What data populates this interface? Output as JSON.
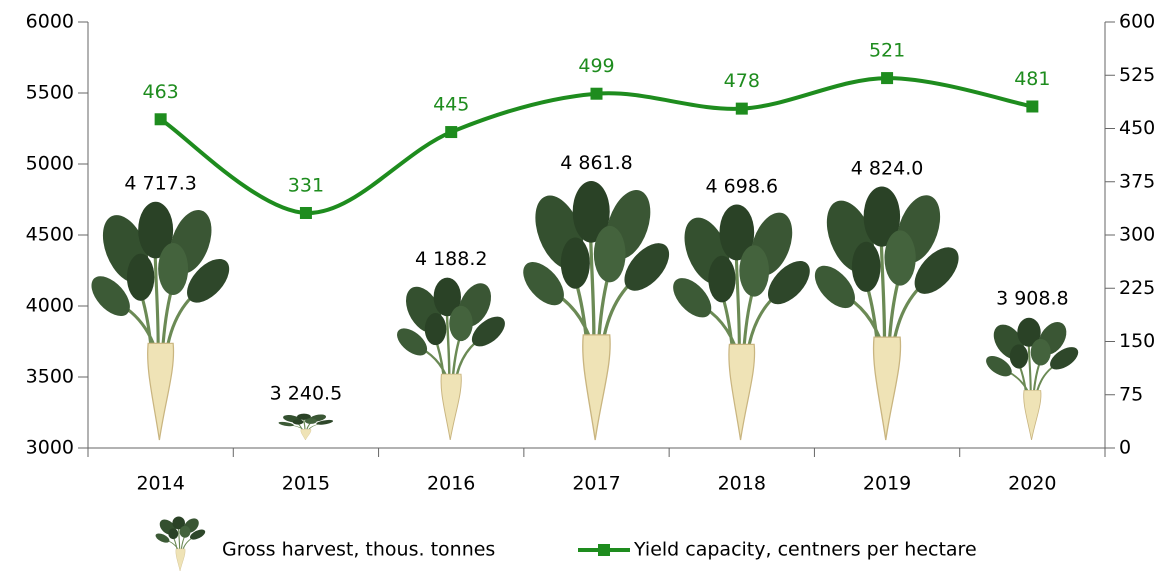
{
  "chart_data": {
    "type": "bar",
    "categories": [
      "2014",
      "2015",
      "2016",
      "2017",
      "2018",
      "2019",
      "2020"
    ],
    "series": [
      {
        "name": "Gross harvest, thous. tonnes",
        "type": "bar",
        "color": "#2f4a2a",
        "values": [
          4717.3,
          3240.5,
          4188.2,
          4861.8,
          4698.6,
          4824.0,
          3908.8
        ],
        "value_labels": [
          "4 717.3",
          "3 240.5",
          "4 188.2",
          "4 861.8",
          "4 698.6",
          "4 824.0",
          "3 908.8"
        ]
      },
      {
        "name": "Yield capacity, centners per hectare",
        "type": "line",
        "color": "#1e8c1e",
        "axis": "y2",
        "values": [
          463,
          331,
          445,
          499,
          478,
          521,
          481
        ]
      }
    ],
    "ylim": [
      3000,
      6000
    ],
    "yticks": [
      3000,
      3500,
      4000,
      4500,
      5000,
      5500,
      6000
    ],
    "y2lim": [
      0,
      600
    ],
    "y2ticks": [
      0,
      75,
      150,
      225,
      300,
      375,
      450,
      525,
      600
    ],
    "grid": false,
    "legend": "bottom"
  }
}
